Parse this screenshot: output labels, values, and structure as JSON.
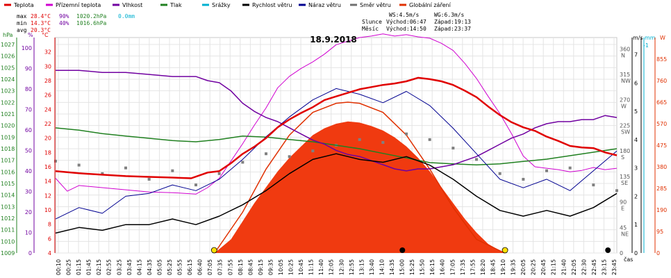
{
  "chart_data": {
    "type": "line",
    "title": "18.9.2018",
    "legend": [
      {
        "name": "Teplota",
        "color": "#e00000"
      },
      {
        "name": "Přízemní teplota",
        "color": "#d000d0"
      },
      {
        "name": "Vlhkost",
        "color": "#7000a0"
      },
      {
        "name": "Tlak",
        "color": "#208020"
      },
      {
        "name": "Srážky",
        "color": "#00b0d0"
      },
      {
        "name": "Rychlost větru",
        "color": "#000000"
      },
      {
        "name": "Náraz větru",
        "color": "#000090"
      },
      {
        "name": "Směr větru",
        "color": "#707070"
      },
      {
        "name": "Globální záření",
        "color": "#e03000"
      }
    ],
    "stats": {
      "max": {
        "label": "max",
        "temp": "28.4°C",
        "hum": "90%",
        "press": "1020.2hPa",
        "rain": "0.0mm"
      },
      "min": {
        "label": "min",
        "temp": "14.3°C",
        "hum": "40%",
        "press": "1016.6hPa"
      },
      "avg": {
        "label": "avg",
        "temp": "20.3°C"
      }
    },
    "info": {
      "ws": "WS:4.5m/s",
      "wg": "WG:6.3m/s",
      "sun_label": "Slunce",
      "sunrise": "Východ:06:47",
      "sunset": "Západ:19:13",
      "moon_label": "Měsíc",
      "moonrise": "Východ:14:50",
      "moonset": "Západ:23:37"
    },
    "axes": {
      "hpa_label": "hPa",
      "pct_label": "%",
      "c_label": "°C",
      "ms_label": "m/s",
      "mm_label": "mm",
      "w_label": "W",
      "x_label": "čas",
      "hpa_ticks": [
        "1009",
        "1010",
        "1011",
        "1012",
        "1013",
        "1014",
        "1015",
        "1016",
        "1017",
        "1018",
        "1019",
        "1020",
        "1021",
        "1022",
        "1023",
        "1024",
        "1025",
        "1026",
        "1027"
      ],
      "pct_ticks": [
        "0",
        "10",
        "20",
        "30",
        "40",
        "50",
        "60",
        "70",
        "80",
        "90",
        "100"
      ],
      "c_ticks": [
        "4",
        "6",
        "8",
        "10",
        "12",
        "14",
        "16",
        "18",
        "20",
        "22",
        "24",
        "26",
        "28",
        "30",
        "32"
      ],
      "dir_ticks": [
        "0",
        "45\nNE",
        "90\nE",
        "135\nSE",
        "180\nS",
        "225\nSW",
        "270\nW",
        "315\nNW",
        "360\nN"
      ],
      "ms_ticks": [
        "0",
        "1",
        "2",
        "3",
        "4",
        "5",
        "6",
        "7"
      ],
      "mm_ticks": [
        "-1"
      ],
      "w_ticks": [
        "0",
        "95",
        "190",
        "285",
        "380",
        "475",
        "570",
        "665",
        "760",
        "855"
      ],
      "time_ticks": [
        "00:10",
        "00:25",
        "01:15",
        "01:45",
        "02:15",
        "02:55",
        "03:25",
        "03:45",
        "04:15",
        "04:35",
        "05:05",
        "05:25",
        "05:55",
        "06:15",
        "06:40",
        "07:05",
        "07:35",
        "07:55",
        "08:15",
        "08:45",
        "09:15",
        "09:35",
        "10:05",
        "10:25",
        "10:45",
        "11:15",
        "11:40",
        "12:05",
        "12:30",
        "12:55",
        "13:15",
        "13:40",
        "14:10",
        "14:35",
        "15:00",
        "15:25",
        "15:50",
        "16:15",
        "16:40",
        "17:05",
        "17:35",
        "17:55",
        "18:20",
        "18:45",
        "19:10",
        "19:35",
        "20:05",
        "20:25",
        "20:45",
        "21:15",
        "21:40",
        "22:05",
        "22:30",
        "22:45",
        "23:15",
        "23:45"
      ]
    },
    "ranges": {
      "temp_c": [
        4,
        34
      ],
      "humidity_pct": [
        0,
        105
      ],
      "pressure_hpa": [
        1009,
        1027.6
      ],
      "wind_ms": [
        0,
        7.6
      ],
      "radiation_w": [
        0,
        950
      ],
      "direction_deg": [
        0,
        380
      ],
      "hours": [
        0,
        24
      ]
    },
    "series": {
      "temperature": [
        [
          0,
          15.4
        ],
        [
          1,
          15.1
        ],
        [
          2,
          14.9
        ],
        [
          3,
          14.7
        ],
        [
          4,
          14.6
        ],
        [
          5,
          14.5
        ],
        [
          5.8,
          14.4
        ],
        [
          6.5,
          15.2
        ],
        [
          7,
          15.4
        ],
        [
          7.5,
          16.5
        ],
        [
          8,
          17.8
        ],
        [
          8.5,
          18.8
        ],
        [
          9,
          20
        ],
        [
          9.5,
          21.5
        ],
        [
          10,
          22.6
        ],
        [
          10.5,
          23.5
        ],
        [
          11,
          24.3
        ],
        [
          11.5,
          25.3
        ],
        [
          12,
          25.8
        ],
        [
          12.5,
          26.3
        ],
        [
          13,
          26.8
        ],
        [
          13.5,
          27.1
        ],
        [
          14,
          27.4
        ],
        [
          14.5,
          27.6
        ],
        [
          15,
          27.9
        ],
        [
          15.5,
          28.4
        ],
        [
          16,
          28.2
        ],
        [
          16.5,
          27.9
        ],
        [
          17,
          27.4
        ],
        [
          17.5,
          26.6
        ],
        [
          18,
          25.7
        ],
        [
          18.5,
          24.4
        ],
        [
          19,
          23.2
        ],
        [
          19.5,
          22.2
        ],
        [
          20,
          21.5
        ],
        [
          20.5,
          21
        ],
        [
          21,
          20.2
        ],
        [
          21.5,
          19.6
        ],
        [
          22,
          18.9
        ],
        [
          22.5,
          18.7
        ],
        [
          23,
          18.6
        ],
        [
          23.5,
          18
        ],
        [
          24,
          17.6
        ]
      ],
      "ground_temperature": [
        [
          0,
          14.4
        ],
        [
          0.5,
          12.6
        ],
        [
          1,
          13.4
        ],
        [
          2,
          13.1
        ],
        [
          3,
          12.8
        ],
        [
          4,
          12.5
        ],
        [
          5,
          12.4
        ],
        [
          6,
          12.2
        ],
        [
          6.5,
          13.1
        ],
        [
          7,
          14.4
        ],
        [
          7.5,
          16.8
        ],
        [
          8,
          19.2
        ],
        [
          8.5,
          21.8
        ],
        [
          9,
          24.2
        ],
        [
          9.5,
          27
        ],
        [
          10,
          28.6
        ],
        [
          10.5,
          29.7
        ],
        [
          11,
          30.6
        ],
        [
          11.5,
          31.7
        ],
        [
          12,
          33
        ],
        [
          12.5,
          33.5
        ],
        [
          13,
          34
        ],
        [
          13.5,
          34.2
        ],
        [
          14,
          34.5
        ],
        [
          14.5,
          34.2
        ],
        [
          15,
          34.4
        ],
        [
          15.5,
          34.1
        ],
        [
          16,
          33.9
        ],
        [
          16.5,
          33.2
        ],
        [
          17,
          32.2
        ],
        [
          17.5,
          30.4
        ],
        [
          18,
          28.3
        ],
        [
          18.5,
          25.8
        ],
        [
          19,
          23.4
        ],
        [
          19.5,
          20.6
        ],
        [
          20,
          17.5
        ],
        [
          20.5,
          16
        ],
        [
          21,
          15.8
        ],
        [
          21.5,
          15.6
        ],
        [
          22,
          15.3
        ],
        [
          22.5,
          15.5
        ],
        [
          23,
          15.9
        ],
        [
          23.5,
          15.6
        ],
        [
          24,
          15.8
        ]
      ],
      "humidity": [
        [
          0,
          89
        ],
        [
          1,
          89
        ],
        [
          2,
          88
        ],
        [
          3,
          88
        ],
        [
          4,
          87
        ],
        [
          5,
          86
        ],
        [
          6,
          86
        ],
        [
          6.5,
          84
        ],
        [
          7,
          83
        ],
        [
          7.5,
          79
        ],
        [
          8,
          73
        ],
        [
          8.5,
          69
        ],
        [
          9,
          66
        ],
        [
          9.5,
          64
        ],
        [
          10,
          61
        ],
        [
          10.5,
          58
        ],
        [
          11,
          55
        ],
        [
          11.5,
          53
        ],
        [
          12,
          50
        ],
        [
          12.5,
          48
        ],
        [
          13,
          47
        ],
        [
          13.5,
          45
        ],
        [
          14,
          43
        ],
        [
          14.5,
          41
        ],
        [
          15,
          40
        ],
        [
          15.5,
          41
        ],
        [
          16,
          41
        ],
        [
          16.5,
          42
        ],
        [
          17,
          43
        ],
        [
          17.5,
          45
        ],
        [
          18,
          47
        ],
        [
          18.5,
          50
        ],
        [
          19,
          53
        ],
        [
          19.5,
          56
        ],
        [
          20,
          58
        ],
        [
          20.5,
          61
        ],
        [
          21,
          63
        ],
        [
          21.5,
          64
        ],
        [
          22,
          64
        ],
        [
          22.5,
          65
        ],
        [
          23,
          65
        ],
        [
          23.5,
          67
        ],
        [
          24,
          66
        ]
      ],
      "pressure": [
        [
          0,
          1019.8
        ],
        [
          1,
          1019.6
        ],
        [
          2,
          1019.3
        ],
        [
          3,
          1019.1
        ],
        [
          4,
          1018.9
        ],
        [
          5,
          1018.7
        ],
        [
          6,
          1018.6
        ],
        [
          7,
          1018.8
        ],
        [
          8,
          1019.1
        ],
        [
          9,
          1019.0
        ],
        [
          10,
          1018.8
        ],
        [
          11,
          1018.6
        ],
        [
          12,
          1018.3
        ],
        [
          13,
          1018.0
        ],
        [
          14,
          1017.6
        ],
        [
          15,
          1017.2
        ],
        [
          16,
          1016.8
        ],
        [
          17,
          1016.7
        ],
        [
          18,
          1016.6
        ],
        [
          19,
          1016.7
        ],
        [
          20,
          1016.9
        ],
        [
          21,
          1017.1
        ],
        [
          22,
          1017.4
        ],
        [
          23,
          1017.7
        ],
        [
          24,
          1018.0
        ]
      ],
      "wind_speed": [
        [
          0,
          0.7
        ],
        [
          1,
          0.9
        ],
        [
          2,
          0.8
        ],
        [
          3,
          1.0
        ],
        [
          4,
          1.0
        ],
        [
          5,
          1.2
        ],
        [
          6,
          1.0
        ],
        [
          7,
          1.3
        ],
        [
          8,
          1.7
        ],
        [
          9,
          2.2
        ],
        [
          10,
          2.8
        ],
        [
          11,
          3.3
        ],
        [
          12,
          3.5
        ],
        [
          13,
          3.3
        ],
        [
          14,
          3.2
        ],
        [
          15,
          3.4
        ],
        [
          16,
          3.1
        ],
        [
          17,
          2.6
        ],
        [
          18,
          2.0
        ],
        [
          19,
          1.5
        ],
        [
          20,
          1.3
        ],
        [
          21,
          1.5
        ],
        [
          22,
          1.3
        ],
        [
          23,
          1.6
        ],
        [
          24,
          2.1
        ]
      ],
      "wind_gust": [
        [
          0,
          1.2
        ],
        [
          1,
          1.6
        ],
        [
          2,
          1.4
        ],
        [
          3,
          2.0
        ],
        [
          4,
          2.1
        ],
        [
          5,
          2.4
        ],
        [
          6,
          2.2
        ],
        [
          7,
          2.6
        ],
        [
          8,
          3.3
        ],
        [
          9,
          4.1
        ],
        [
          10,
          4.8
        ],
        [
          11,
          5.4
        ],
        [
          12,
          5.8
        ],
        [
          13,
          5.6
        ],
        [
          14,
          5.3
        ],
        [
          15,
          5.7
        ],
        [
          16,
          5.2
        ],
        [
          17,
          4.4
        ],
        [
          18,
          3.5
        ],
        [
          19,
          2.6
        ],
        [
          20,
          2.3
        ],
        [
          21,
          2.6
        ],
        [
          22,
          2.2
        ],
        [
          23,
          2.9
        ],
        [
          24,
          3.6
        ]
      ],
      "wind_direction": [
        [
          0,
          162
        ],
        [
          1,
          155
        ],
        [
          2,
          140
        ],
        [
          3,
          150
        ],
        [
          4,
          130
        ],
        [
          5,
          145
        ],
        [
          6,
          120
        ],
        [
          7,
          140
        ],
        [
          8,
          160
        ],
        [
          9,
          175
        ],
        [
          10,
          170
        ],
        [
          11,
          180
        ],
        [
          12,
          190
        ],
        [
          13,
          200
        ],
        [
          14,
          195
        ],
        [
          15,
          210
        ],
        [
          16,
          200
        ],
        [
          17,
          185
        ],
        [
          18,
          165
        ],
        [
          19,
          140
        ],
        [
          20,
          130
        ],
        [
          21,
          145
        ],
        [
          22,
          150
        ],
        [
          23,
          120
        ],
        [
          24,
          110
        ]
      ],
      "radiation": [
        [
          6.8,
          0
        ],
        [
          7.5,
          60
        ],
        [
          8,
          140
        ],
        [
          8.5,
          220
        ],
        [
          9,
          290
        ],
        [
          9.5,
          360
        ],
        [
          10,
          420
        ],
        [
          10.5,
          470
        ],
        [
          11,
          520
        ],
        [
          11.5,
          550
        ],
        [
          12,
          570
        ],
        [
          12.5,
          580
        ],
        [
          13,
          575
        ],
        [
          13.5,
          560
        ],
        [
          14,
          540
        ],
        [
          14.5,
          510
        ],
        [
          15,
          470
        ],
        [
          15.5,
          420
        ],
        [
          16,
          360
        ],
        [
          16.5,
          290
        ],
        [
          17,
          220
        ],
        [
          17.5,
          150
        ],
        [
          18,
          90
        ],
        [
          18.5,
          40
        ],
        [
          19,
          10
        ],
        [
          19.2,
          0
        ]
      ],
      "radiation_theoretical": [
        [
          6.8,
          0
        ],
        [
          8,
          180
        ],
        [
          9,
          370
        ],
        [
          10,
          520
        ],
        [
          11,
          620
        ],
        [
          12,
          660
        ],
        [
          12.5,
          665
        ],
        [
          13,
          660
        ],
        [
          14,
          620
        ],
        [
          15,
          520
        ],
        [
          16,
          370
        ],
        [
          17,
          200
        ],
        [
          18,
          60
        ],
        [
          19.2,
          0
        ]
      ]
    },
    "markers": {
      "sunrise_hour": 6.78,
      "sunset_hour": 19.22,
      "moonrise_hour": 14.83,
      "moonset_hour": 23.62
    }
  }
}
